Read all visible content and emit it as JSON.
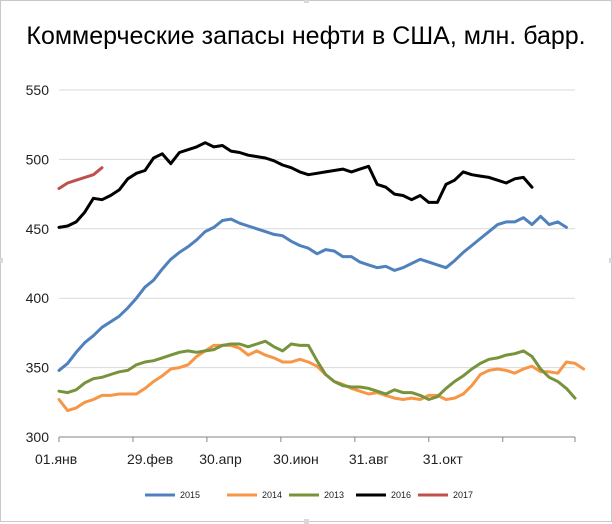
{
  "chart_data": {
    "type": "line",
    "title": "Коммерческие запасы нефти в США, млн. барр.",
    "ylim": [
      300,
      550
    ],
    "y_ticks": [
      "300",
      "350",
      "400",
      "450",
      "500",
      "550"
    ],
    "x_tick_labels": [
      "01.янв",
      "29.фев",
      "30.апр",
      "30.июн",
      "31.авг",
      "31.окт"
    ],
    "grid": "horizontal",
    "legend_position": "bottom",
    "series": [
      {
        "name": "2015",
        "color": "#4f81bd",
        "values": [
          348,
          353,
          361,
          368,
          373,
          379,
          383,
          387,
          393,
          400,
          408,
          413,
          421,
          428,
          433,
          437,
          442,
          448,
          451,
          456,
          457,
          454,
          452,
          450,
          448,
          446,
          445,
          441,
          438,
          436,
          432,
          435,
          434,
          430,
          430,
          426,
          424,
          422,
          423,
          420,
          422,
          425,
          428,
          426,
          424,
          422,
          427,
          433,
          438,
          443,
          448,
          453,
          455,
          455,
          458,
          453,
          459,
          453,
          455,
          451
        ]
      },
      {
        "name": "2014",
        "color": "#f79646",
        "values": [
          327,
          319,
          321,
          325,
          327,
          330,
          330,
          331,
          331,
          331,
          335,
          340,
          344,
          349,
          350,
          352,
          358,
          362,
          366,
          366,
          366,
          364,
          359,
          362,
          359,
          357,
          354,
          354,
          356,
          354,
          351,
          345,
          340,
          338,
          335,
          333,
          331,
          332,
          330,
          328,
          327,
          328,
          327,
          330,
          330,
          327,
          328,
          331,
          337,
          345,
          348,
          349,
          348,
          346,
          349,
          351,
          347,
          347,
          346,
          354,
          353,
          349
        ]
      },
      {
        "name": "2013",
        "color": "#77933c",
        "values": [
          333,
          332,
          334,
          339,
          342,
          343,
          345,
          347,
          348,
          352,
          354,
          355,
          357,
          359,
          361,
          362,
          361,
          362,
          363,
          366,
          367,
          367,
          365,
          367,
          369,
          365,
          362,
          367,
          366,
          366,
          355,
          345,
          340,
          337,
          336,
          336,
          335,
          333,
          331,
          334,
          332,
          332,
          330,
          327,
          329,
          335,
          340,
          344,
          349,
          353,
          356,
          357,
          359,
          360,
          362,
          358,
          349,
          343,
          340,
          335,
          328
        ]
      },
      {
        "name": "2016",
        "color": "#000000",
        "values": [
          451,
          452,
          455,
          462,
          472,
          471,
          474,
          478,
          486,
          490,
          492,
          501,
          504,
          497,
          505,
          507,
          509,
          512,
          509,
          510,
          506,
          505,
          503,
          502,
          501,
          499,
          496,
          494,
          491,
          489,
          490,
          491,
          492,
          493,
          491,
          493,
          495,
          482,
          480,
          475,
          474,
          471,
          474,
          469,
          469,
          482,
          485,
          491,
          489,
          488,
          487,
          485,
          483,
          486,
          487,
          480
        ]
      },
      {
        "name": "2017",
        "color": "#c0504d",
        "values": [
          479,
          483,
          485,
          487,
          489,
          494
        ]
      }
    ]
  }
}
